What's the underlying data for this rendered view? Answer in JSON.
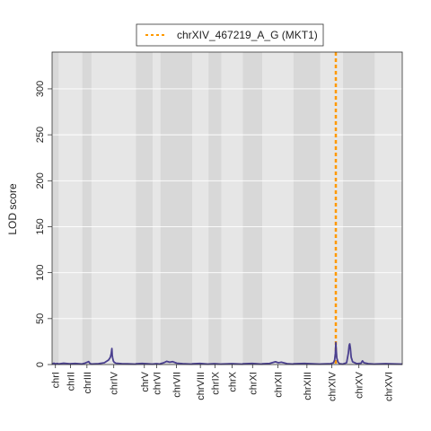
{
  "chart_data": {
    "type": "line",
    "ylabel": "LOD score",
    "xlabel": "",
    "ylim": [
      0,
      340
    ],
    "y_ticks": [
      0,
      50,
      100,
      150,
      200,
      250,
      300
    ],
    "grid": true,
    "legend_position": "top-center",
    "chromosomes": [
      {
        "name": "chrI",
        "start": 0,
        "end": 230
      },
      {
        "name": "chrII",
        "start": 230,
        "end": 1043
      },
      {
        "name": "chrIII",
        "start": 1043,
        "end": 1360
      },
      {
        "name": "chrIV",
        "start": 1360,
        "end": 2892
      },
      {
        "name": "chrV",
        "start": 2892,
        "end": 3469
      },
      {
        "name": "chrVI",
        "start": 3469,
        "end": 3739
      },
      {
        "name": "chrVII",
        "start": 3739,
        "end": 4830
      },
      {
        "name": "chrVIII",
        "start": 4830,
        "end": 5393
      },
      {
        "name": "chrIX",
        "start": 5393,
        "end": 5832
      },
      {
        "name": "chrX",
        "start": 5832,
        "end": 6577
      },
      {
        "name": "chrXI",
        "start": 6577,
        "end": 7244
      },
      {
        "name": "chrXII",
        "start": 7244,
        "end": 8322
      },
      {
        "name": "chrXIII",
        "start": 8322,
        "end": 9246
      },
      {
        "name": "chrXIV",
        "start": 9246,
        "end": 10030
      },
      {
        "name": "chrXV",
        "start": 10030,
        "end": 11121
      },
      {
        "name": "chrXVI",
        "start": 11121,
        "end": 12070
      }
    ],
    "series": [
      {
        "name": "",
        "color": "#4a3f8f",
        "x": [
          0,
          60,
          120,
          180,
          229,
          231,
          400,
          600,
          800,
          1042,
          1044,
          1150,
          1260,
          1300,
          1359,
          1361,
          1600,
          1800,
          1950,
          2010,
          2040,
          2060,
          2075,
          2090,
          2110,
          2140,
          2200,
          2400,
          2600,
          2891,
          2893,
          3100,
          3300,
          3468,
          3470,
          3600,
          3738,
          3740,
          3850,
          3950,
          4050,
          4150,
          4300,
          4500,
          4829,
          4831,
          5100,
          5392,
          5394,
          5600,
          5831,
          5833,
          6200,
          6576,
          6578,
          6900,
          7243,
          7245,
          7500,
          7700,
          7800,
          7900,
          8100,
          8321,
          8323,
          8700,
          9245,
          9247,
          9600,
          9700,
          9740,
          9765,
          9780,
          9795,
          9815,
          9850,
          9900,
          10029,
          10031,
          10150,
          10210,
          10240,
          10260,
          10280,
          10310,
          10360,
          10500,
          10650,
          10700,
          10750,
          10900,
          11120,
          11122,
          11500,
          12070
        ],
        "y": [
          0.5,
          1.5,
          0.8,
          1.2,
          0.6,
          0.7,
          1.5,
          0.8,
          1.2,
          0.6,
          0.8,
          1.8,
          3.2,
          1.5,
          0.5,
          0.6,
          1.0,
          2.0,
          5.0,
          8.0,
          12.0,
          17.5,
          10.0,
          7.0,
          4.0,
          2.5,
          1.5,
          1.0,
          0.8,
          0.5,
          0.8,
          1.2,
          0.8,
          0.5,
          0.6,
          1.0,
          0.5,
          1.0,
          2.0,
          3.5,
          2.5,
          3.2,
          1.5,
          1.0,
          0.5,
          0.8,
          1.2,
          0.5,
          0.6,
          1.0,
          0.5,
          0.6,
          1.0,
          0.5,
          0.8,
          1.2,
          0.5,
          0.8,
          1.2,
          3.0,
          2.0,
          2.5,
          1.0,
          0.5,
          0.8,
          1.2,
          0.5,
          0.6,
          1.0,
          2.0,
          5.0,
          12.0,
          24.0,
          15.0,
          7.0,
          3.0,
          1.0,
          0.5,
          0.7,
          2.0,
          12.0,
          21.0,
          22.5,
          18.0,
          8.0,
          3.0,
          1.0,
          1.5,
          4.0,
          2.0,
          1.0,
          0.5,
          0.6,
          1.0,
          0.5
        ]
      }
    ],
    "markers": [
      {
        "label": "chrXIV_467219_A_G (MKT1)",
        "x": 9780,
        "color": "#ff9900",
        "style": "dotted-vertical"
      }
    ]
  }
}
